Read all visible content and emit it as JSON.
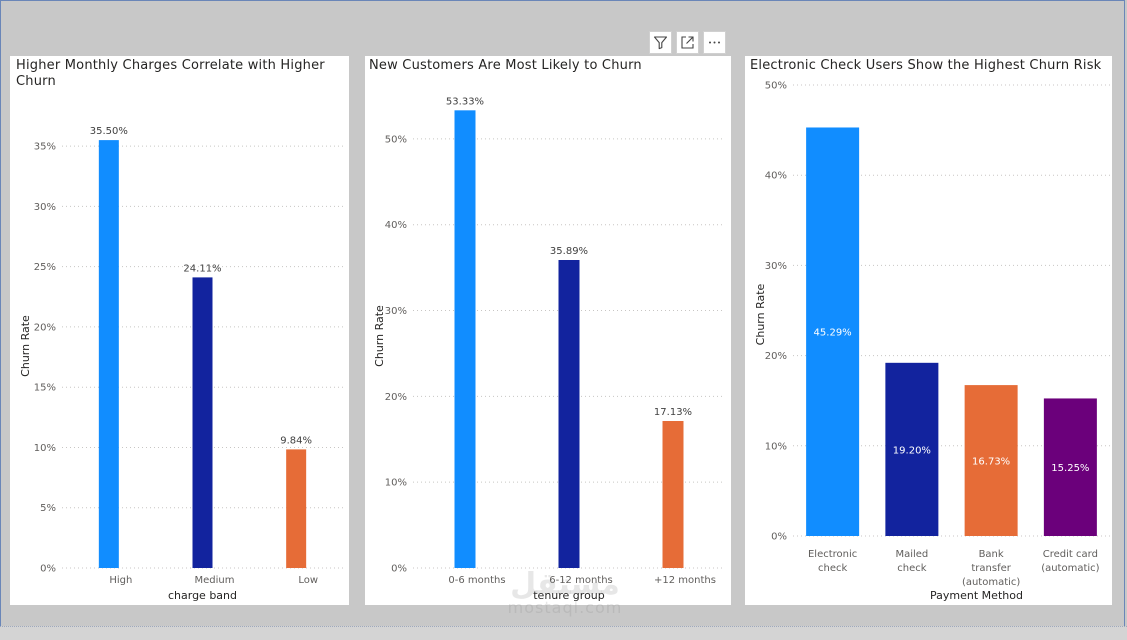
{
  "toolbar": {
    "filter_icon": "filter-icon",
    "focus_icon": "focus-mode-icon",
    "more_icon": "more-options-icon"
  },
  "watermark": {
    "arabic": "مستقل",
    "latin": "mostaql.com"
  },
  "colors": {
    "light_blue": "#118dff",
    "dark_blue": "#12239e",
    "orange": "#e66c37",
    "purple": "#6b007b"
  },
  "chart_data": [
    {
      "type": "bar",
      "title": "Higher Monthly Charges Correlate with Higher Churn",
      "title_lines": [
        "Higher Monthly Charges Correlate with Higher",
        "Churn"
      ],
      "categories": [
        "High",
        "Medium",
        "Low"
      ],
      "values": [
        35.5,
        24.11,
        9.84
      ],
      "value_labels": [
        "35.50%",
        "24.11%",
        "9.84%"
      ],
      "colors": [
        "#118dff",
        "#12239e",
        "#e66c37"
      ],
      "xlabel": "charge band",
      "ylabel": "Churn Rate",
      "ylim": [
        0,
        37.5
      ],
      "yticks": [
        0,
        5,
        10,
        15,
        20,
        25,
        30,
        35
      ],
      "ytick_labels": [
        "0%",
        "5%",
        "10%",
        "15%",
        "20%",
        "25%",
        "30%",
        "35%"
      ],
      "grid": true,
      "labels_inside": false
    },
    {
      "type": "bar",
      "title": "New Customers Are Most Likely to Churn",
      "title_lines": [
        "New Customers Are Most Likely to Churn"
      ],
      "categories": [
        "0-6 months",
        "6-12 months",
        "+12 months"
      ],
      "values": [
        53.33,
        35.89,
        17.13
      ],
      "value_labels": [
        "53.33%",
        "35.89%",
        "17.13%"
      ],
      "colors": [
        "#118dff",
        "#12239e",
        "#e66c37"
      ],
      "xlabel": "tenure group",
      "ylabel": "Churn Rate",
      "ylim": [
        0,
        55
      ],
      "yticks": [
        0,
        10,
        20,
        30,
        40,
        50
      ],
      "ytick_labels": [
        "0%",
        "10%",
        "20%",
        "30%",
        "40%",
        "50%"
      ],
      "grid": true,
      "labels_inside": false
    },
    {
      "type": "bar",
      "title": "Electronic Check Users Show the Highest Churn Risk",
      "title_lines": [
        "Electronic Check Users Show the Highest Churn Risk"
      ],
      "categories": [
        [
          "Electronic",
          "check"
        ],
        [
          "Mailed",
          "check"
        ],
        [
          "Bank",
          "transfer",
          "(automatic)"
        ],
        [
          "Credit card",
          "(automatic)"
        ]
      ],
      "values": [
        45.29,
        19.2,
        16.73,
        15.25
      ],
      "value_labels": [
        "45.29%",
        "19.20%",
        "16.73%",
        "15.25%"
      ],
      "colors": [
        "#118dff",
        "#12239e",
        "#e66c37",
        "#6b007b"
      ],
      "xlabel": "Payment Method",
      "ylabel": "Churn Rate",
      "ylim": [
        0,
        50
      ],
      "yticks": [
        0,
        10,
        20,
        30,
        40,
        50
      ],
      "ytick_labels": [
        "0%",
        "10%",
        "20%",
        "30%",
        "40%",
        "50%"
      ],
      "grid": true,
      "labels_inside": true
    }
  ]
}
